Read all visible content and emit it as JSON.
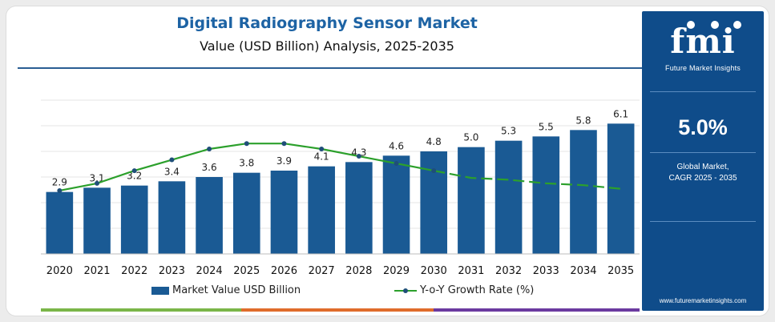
{
  "title": "Digital Radiography Sensor Market",
  "subtitle": "Value (USD Billion) Analysis, 2025-2035",
  "legend": {
    "bars": "Market Value USD Billion",
    "line": "Y-o-Y Growth Rate (%)"
  },
  "side_panel": {
    "logo": "fmi",
    "logo_sub": "Future Market Insights",
    "cagr_value": "5.0%",
    "cagr_label_1": "Global Market,",
    "cagr_label_2": "CAGR 2025 - 2035",
    "url": "www.futuremarketinsights.com"
  },
  "colors": {
    "bar": "#1a5a94",
    "line": "#2ca02c",
    "line_marker": "#1f4e79",
    "title": "#1d63a4",
    "panel": "#0f4c8a",
    "bottom_bar": [
      "#7ab648",
      "#e06c2b",
      "#6b3aa0"
    ]
  },
  "chart_data": {
    "type": "bar",
    "categories": [
      "2020",
      "2021",
      "2022",
      "2023",
      "2024",
      "2025",
      "2026",
      "2027",
      "2028",
      "2029",
      "2030",
      "2031",
      "2032",
      "2033",
      "2034",
      "2035"
    ],
    "series": [
      {
        "name": "Market Value USD Billion",
        "type": "bar",
        "values": [
          2.9,
          3.1,
          3.2,
          3.4,
          3.6,
          3.8,
          3.9,
          4.1,
          4.3,
          4.6,
          4.8,
          5.0,
          5.3,
          5.5,
          5.8,
          6.1
        ],
        "labels": [
          "2.9",
          "3.1",
          "3.2",
          "3.4",
          "3.6",
          "3.8",
          "3.9",
          "4.1",
          "4.3",
          "4.6",
          "4.8",
          "5.0",
          "5.3",
          "5.5",
          "5.8",
          "6.1"
        ]
      },
      {
        "name": "Y-o-Y Growth Rate (%)",
        "type": "line",
        "values": [
          3.5,
          3.9,
          4.6,
          5.2,
          5.8,
          6.1,
          6.1,
          5.8,
          5.4,
          5.0,
          4.6,
          4.2,
          4.1,
          3.9,
          3.8,
          3.6
        ],
        "solid_until_index": 10,
        "dashed_after": true
      }
    ],
    "bar_ylim": [
      0,
      7.2
    ],
    "line_ylim": [
      0,
      8.5
    ],
    "grid": true,
    "legend_position": "bottom"
  }
}
